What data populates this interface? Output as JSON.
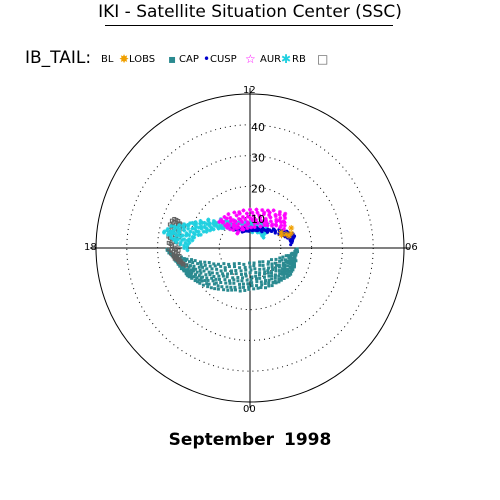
{
  "title": "IKI - Satellite Situation Center (SSC)",
  "footer": "September    1998",
  "legend": {
    "title": "IB_TAIL:",
    "items": [
      {
        "label": "BL",
        "symbol": "",
        "color": "#000000"
      },
      {
        "label": "LOBS",
        "symbol": "✸",
        "color": "#f0a000"
      },
      {
        "label": "CAP",
        "symbol": "▪",
        "color": "#2a8a90"
      },
      {
        "label": "CUSP",
        "symbol": "•",
        "color": "#0000cc"
      },
      {
        "label": "AUR",
        "symbol": "☆",
        "color": "#ff00ff"
      },
      {
        "label": "RB",
        "symbol": "✱",
        "color": "#20d0e0"
      },
      {
        "label": "",
        "symbol": "□",
        "color": "#606060"
      }
    ]
  },
  "chart_data": {
    "type": "scatter",
    "projection": "polar",
    "clock_labels": {
      "top": "12",
      "bottom": "00",
      "left": "18",
      "right": "06"
    },
    "radial_ticks": [
      "40",
      "30",
      "20",
      "10"
    ],
    "radial_values": [
      40,
      30,
      20,
      10
    ],
    "r_max": 50,
    "grid": true,
    "series": [
      {
        "name": "CAP",
        "color": "#2a8a90",
        "symbol": "square"
      },
      {
        "name": "CUSP",
        "color": "#0000cc",
        "symbol": "dot"
      },
      {
        "name": "AUR",
        "color": "#ff00ff",
        "symbol": "star"
      },
      {
        "name": "RB",
        "color": "#20d0e0",
        "symbol": "asterisk"
      },
      {
        "name": "LOBS",
        "color": "#f0a000",
        "symbol": "burst"
      },
      {
        "name": "",
        "color": "#606060",
        "symbol": "open-square"
      }
    ]
  }
}
